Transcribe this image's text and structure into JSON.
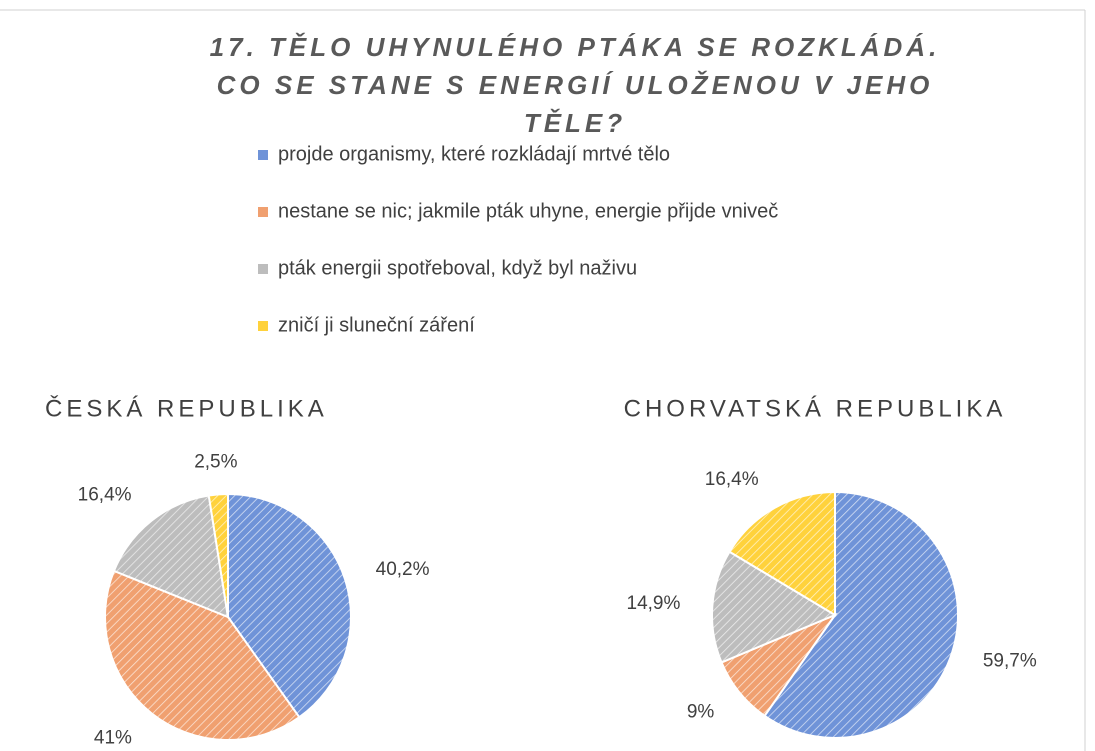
{
  "chart_data": {
    "type": "pie",
    "title": "17. TĚLO UHYNULÉHO PTÁKA SE ROZKLÁDÁ. CO SE STANE S ENERGIÍ ULOŽENOU V JEHO TĚLE?",
    "categories": [
      "projde organismy, které rozkládají mrtvé tělo",
      "nestane se nic; jakmile pták uhyne, energie přijde vniveč",
      "pták energii spotřeboval, když byl naživu",
      "zničí ji sluneční záření"
    ],
    "colors": [
      "#6f93d8",
      "#f0a070",
      "#bdbdbd",
      "#ffd23c"
    ],
    "series": [
      {
        "name": "ČESKÁ REPUBLIKA",
        "values": [
          40.2,
          41,
          16.4,
          2.5
        ],
        "value_labels": [
          "40,2%",
          "41%",
          "16,4%",
          "2,5%"
        ]
      },
      {
        "name": "CHORVATSKÁ REPUBLIKA",
        "values": [
          59.7,
          9,
          14.9,
          16.4
        ],
        "value_labels": [
          "59,7%",
          "9%",
          "14,9%",
          "16,4%"
        ]
      }
    ]
  }
}
